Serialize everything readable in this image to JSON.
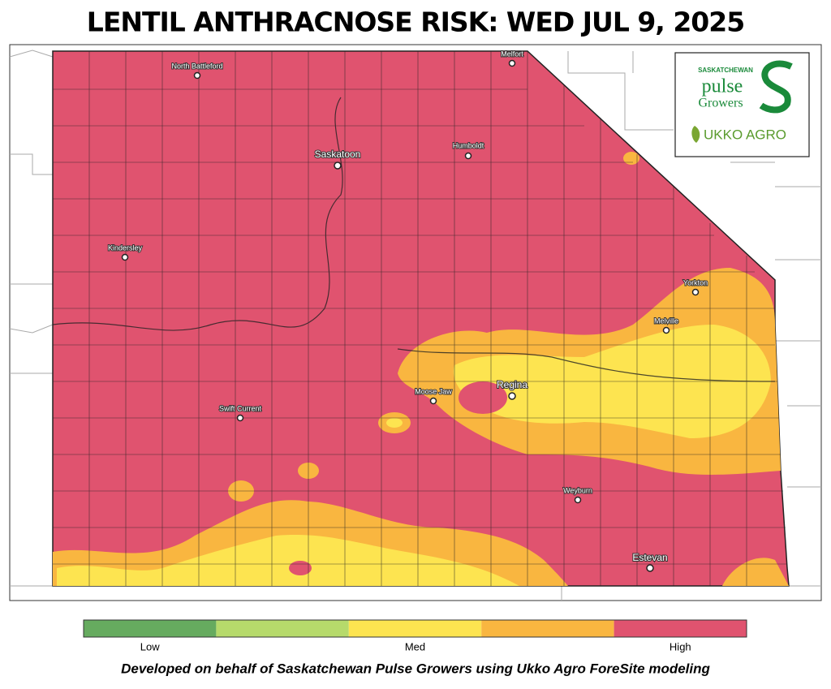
{
  "title": "LENTIL ANTHRACNOSE RISK: WED JUL 9, 2025",
  "cities": [
    "North Battleford",
    "Melfort",
    "Saskatoon",
    "Humboldt",
    "Kindersley",
    "Yorkton",
    "Melville",
    "Moose Jaw",
    "Regina",
    "Swift Current",
    "Weyburn",
    "Estevan"
  ],
  "logo": {
    "org_top": "SASKATCHEWAN",
    "org_main": "pulse",
    "org_sub": "Growers",
    "partner": "UKKO AGRO"
  },
  "legend": {
    "colors": [
      "#66ab5f",
      "#b6da6b",
      "#fde450",
      "#f9b640",
      "#e0536f"
    ],
    "labels": [
      "Low",
      "Med",
      "High"
    ]
  },
  "footer": "Developed on behalf of Saskatchewan Pulse Growers using Ukko Agro ForeSite modeling"
}
